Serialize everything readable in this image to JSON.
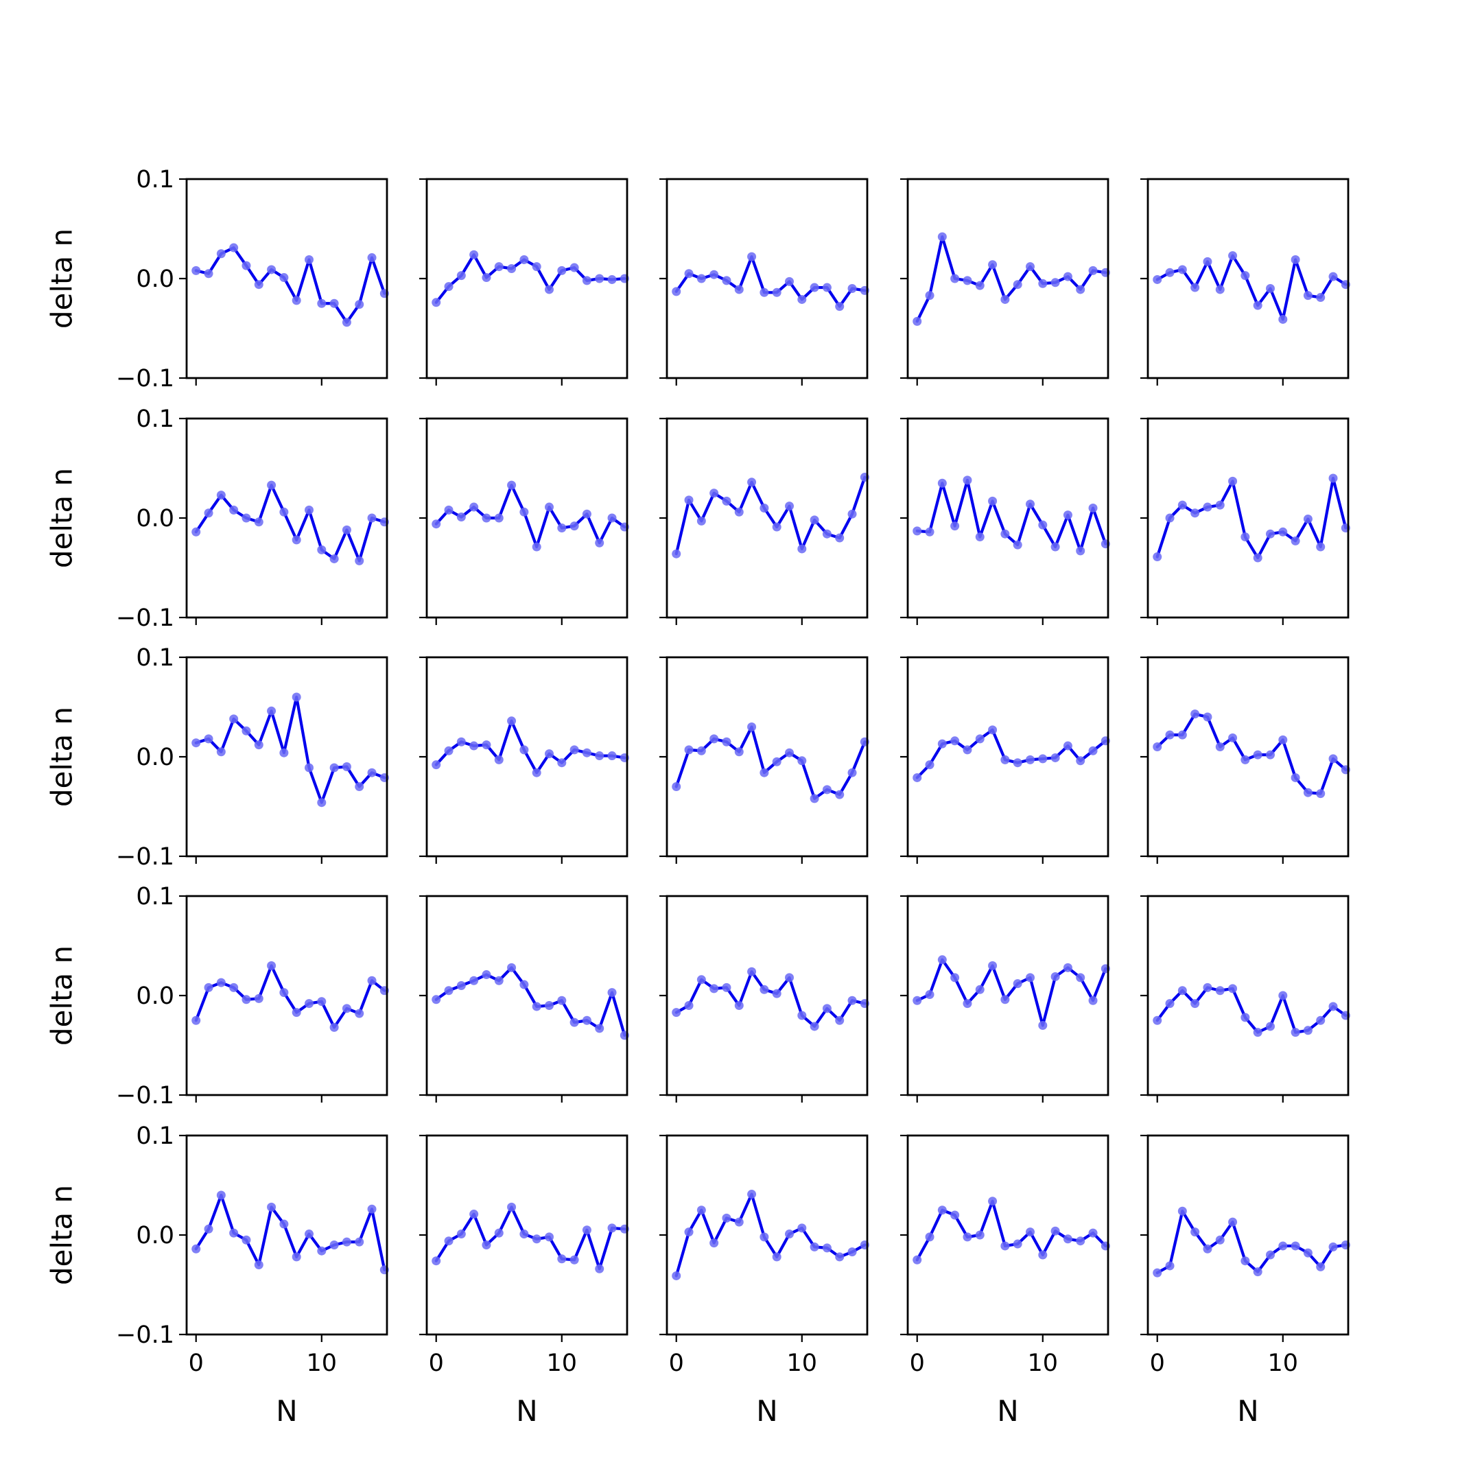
{
  "chart_data": {
    "type": "line",
    "layout": {
      "rows": 5,
      "cols": 5
    },
    "x": [
      0,
      1,
      2,
      3,
      4,
      5,
      6,
      7,
      8,
      9,
      10,
      11,
      12,
      13,
      14,
      15
    ],
    "xlabel": "N",
    "ylabel": "delta n",
    "xlim": [
      -0.75,
      15.2
    ],
    "ylim": [
      -0.1,
      0.1
    ],
    "x_ticks": [
      0,
      10
    ],
    "x_tick_labels": [
      "0",
      "10"
    ],
    "y_ticks": [
      -0.1,
      0.0,
      0.1
    ],
    "y_tick_labels": [
      "−0.1",
      "0.0",
      "0.1"
    ],
    "grid": false,
    "line_color": "#0000ee",
    "marker_color": "#6a6af5",
    "panels": [
      {
        "values": [
          0.008,
          0.005,
          0.025,
          0.031,
          0.013,
          -0.006,
          0.009,
          0.001,
          -0.022,
          0.019,
          -0.025,
          -0.025,
          -0.044,
          -0.026,
          0.021,
          -0.015
        ]
      },
      {
        "values": [
          -0.024,
          -0.008,
          0.003,
          0.024,
          0.001,
          0.012,
          0.01,
          0.019,
          0.012,
          -0.011,
          0.008,
          0.011,
          -0.002,
          0.0,
          -0.001,
          0.0
        ]
      },
      {
        "values": [
          -0.013,
          0.005,
          0.0,
          0.004,
          -0.002,
          -0.011,
          0.022,
          -0.014,
          -0.014,
          -0.003,
          -0.021,
          -0.009,
          -0.009,
          -0.028,
          -0.01,
          -0.012
        ]
      },
      {
        "values": [
          -0.043,
          -0.017,
          0.042,
          0.0,
          -0.002,
          -0.007,
          0.014,
          -0.021,
          -0.006,
          0.012,
          -0.005,
          -0.004,
          0.002,
          -0.011,
          0.008,
          0.006
        ]
      },
      {
        "values": [
          -0.001,
          0.006,
          0.009,
          -0.009,
          0.017,
          -0.011,
          0.023,
          0.003,
          -0.027,
          -0.01,
          -0.041,
          0.019,
          -0.017,
          -0.019,
          0.002,
          -0.006
        ]
      },
      {
        "values": [
          -0.014,
          0.005,
          0.023,
          0.008,
          0.0,
          -0.004,
          0.033,
          0.006,
          -0.022,
          0.008,
          -0.032,
          -0.041,
          -0.012,
          -0.043,
          0.0,
          -0.004
        ]
      },
      {
        "values": [
          -0.006,
          0.008,
          0.001,
          0.011,
          0.0,
          0.0,
          0.033,
          0.006,
          -0.029,
          0.011,
          -0.01,
          -0.008,
          0.004,
          -0.025,
          0.0,
          -0.009
        ]
      },
      {
        "values": [
          -0.036,
          0.018,
          -0.003,
          0.025,
          0.017,
          0.006,
          0.036,
          0.01,
          -0.009,
          0.012,
          -0.031,
          -0.002,
          -0.016,
          -0.02,
          0.004,
          0.041
        ]
      },
      {
        "values": [
          -0.013,
          -0.014,
          0.035,
          -0.008,
          0.038,
          -0.019,
          0.017,
          -0.016,
          -0.027,
          0.014,
          -0.007,
          -0.029,
          0.003,
          -0.033,
          0.01,
          -0.026
        ]
      },
      {
        "values": [
          -0.039,
          0.0,
          0.013,
          0.005,
          0.011,
          0.013,
          0.037,
          -0.019,
          -0.04,
          -0.016,
          -0.014,
          -0.023,
          -0.001,
          -0.029,
          0.04,
          -0.01
        ]
      },
      {
        "values": [
          0.014,
          0.018,
          0.005,
          0.038,
          0.026,
          0.012,
          0.046,
          0.004,
          0.06,
          -0.011,
          -0.046,
          -0.011,
          -0.01,
          -0.03,
          -0.016,
          -0.021
        ]
      },
      {
        "values": [
          -0.008,
          0.006,
          0.015,
          0.011,
          0.012,
          -0.003,
          0.036,
          0.007,
          -0.016,
          0.003,
          -0.006,
          0.007,
          0.004,
          0.001,
          0.001,
          -0.001
        ]
      },
      {
        "values": [
          -0.03,
          0.007,
          0.006,
          0.018,
          0.015,
          0.005,
          0.03,
          -0.016,
          -0.005,
          0.004,
          -0.004,
          -0.042,
          -0.033,
          -0.038,
          -0.016,
          0.015
        ]
      },
      {
        "values": [
          -0.021,
          -0.008,
          0.013,
          0.016,
          0.007,
          0.018,
          0.027,
          -0.003,
          -0.006,
          -0.003,
          -0.002,
          -0.001,
          0.011,
          -0.004,
          0.006,
          0.016
        ]
      },
      {
        "values": [
          0.01,
          0.022,
          0.022,
          0.043,
          0.04,
          0.01,
          0.019,
          -0.003,
          0.002,
          0.002,
          0.017,
          -0.021,
          -0.036,
          -0.037,
          -0.002,
          -0.013
        ]
      },
      {
        "values": [
          -0.025,
          0.008,
          0.013,
          0.008,
          -0.004,
          -0.003,
          0.03,
          0.003,
          -0.017,
          -0.008,
          -0.006,
          -0.032,
          -0.013,
          -0.018,
          0.015,
          0.005
        ]
      },
      {
        "values": [
          -0.004,
          0.005,
          0.01,
          0.015,
          0.021,
          0.015,
          0.028,
          0.011,
          -0.011,
          -0.01,
          -0.005,
          -0.027,
          -0.025,
          -0.033,
          0.003,
          -0.04
        ]
      },
      {
        "values": [
          -0.017,
          -0.01,
          0.016,
          0.007,
          0.008,
          -0.01,
          0.024,
          0.006,
          0.002,
          0.018,
          -0.02,
          -0.031,
          -0.013,
          -0.025,
          -0.005,
          -0.008
        ]
      },
      {
        "values": [
          -0.005,
          0.001,
          0.036,
          0.018,
          -0.008,
          0.006,
          0.03,
          -0.004,
          0.012,
          0.018,
          -0.03,
          0.019,
          0.028,
          0.018,
          -0.005,
          0.027
        ]
      },
      {
        "values": [
          -0.025,
          -0.008,
          0.005,
          -0.008,
          0.008,
          0.005,
          0.007,
          -0.022,
          -0.037,
          -0.031,
          0.0,
          -0.037,
          -0.035,
          -0.025,
          -0.011,
          -0.02
        ]
      },
      {
        "values": [
          -0.014,
          0.006,
          0.04,
          0.002,
          -0.005,
          -0.03,
          0.028,
          0.011,
          -0.022,
          0.001,
          -0.016,
          -0.01,
          -0.007,
          -0.007,
          0.026,
          -0.035
        ]
      },
      {
        "values": [
          -0.026,
          -0.006,
          0.001,
          0.021,
          -0.01,
          0.002,
          0.028,
          0.001,
          -0.004,
          -0.002,
          -0.024,
          -0.025,
          0.005,
          -0.034,
          0.007,
          0.006
        ]
      },
      {
        "values": [
          -0.041,
          0.003,
          0.025,
          -0.008,
          0.017,
          0.013,
          0.041,
          -0.002,
          -0.022,
          0.001,
          0.007,
          -0.012,
          -0.013,
          -0.022,
          -0.017,
          -0.01
        ]
      },
      {
        "values": [
          -0.025,
          -0.002,
          0.025,
          0.02,
          -0.002,
          0.0,
          0.034,
          -0.011,
          -0.009,
          0.003,
          -0.02,
          0.004,
          -0.004,
          -0.006,
          0.002,
          -0.011
        ]
      },
      {
        "values": [
          -0.038,
          -0.031,
          0.024,
          0.003,
          -0.014,
          -0.005,
          0.013,
          -0.026,
          -0.037,
          -0.02,
          -0.011,
          -0.011,
          -0.018,
          -0.032,
          -0.012,
          -0.01
        ]
      }
    ]
  }
}
